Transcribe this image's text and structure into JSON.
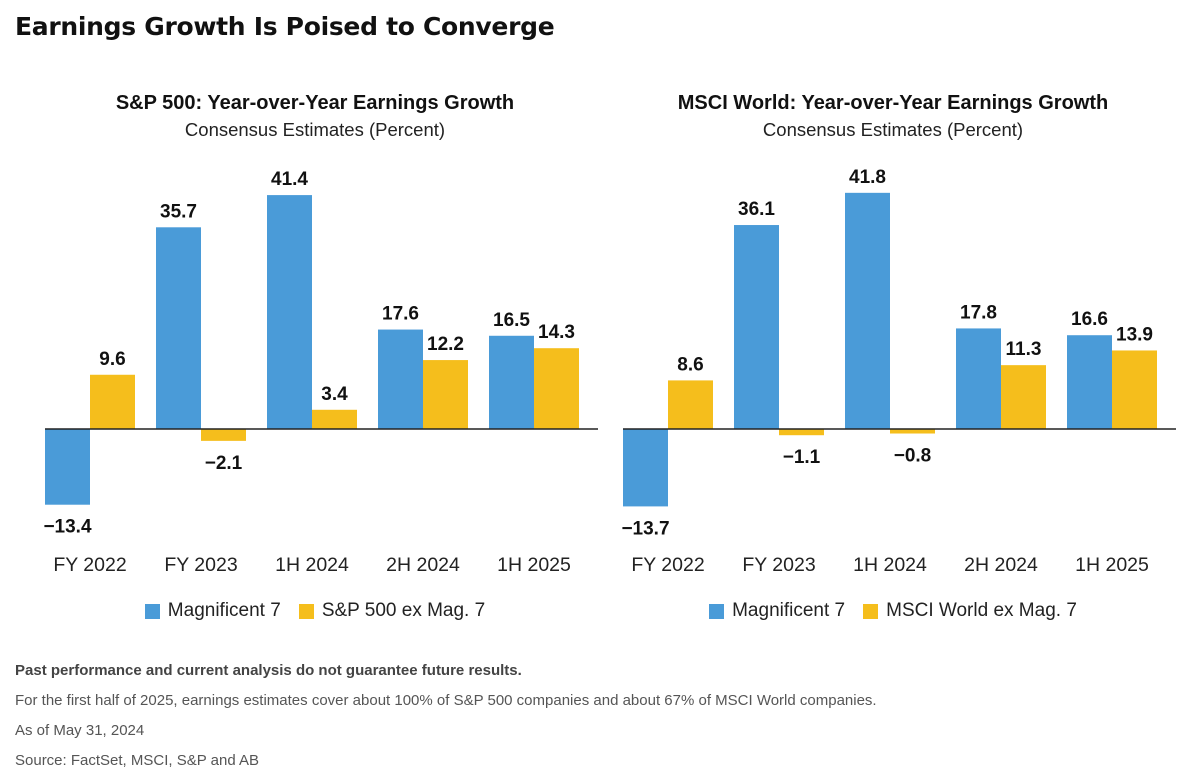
{
  "title": "Earnings Growth Is Poised to Converge",
  "colors": {
    "series1": "#4a9bd8",
    "series2": "#f5be1c",
    "axis": "#222222"
  },
  "chart_data": [
    {
      "type": "bar",
      "title": "S&P 500: Year-over-Year Earnings Growth",
      "subtitle": "Consensus Estimates (Percent)",
      "categories": [
        "FY 2022",
        "FY 2023",
        "1H 2024",
        "2H 2024",
        "1H 2025"
      ],
      "series": [
        {
          "name": "Magnificent 7",
          "values": [
            -13.4,
            35.7,
            41.4,
            17.6,
            16.5
          ]
        },
        {
          "name": "S&P 500 ex Mag. 7",
          "values": [
            9.6,
            -2.1,
            3.4,
            12.2,
            14.3
          ]
        }
      ],
      "value_labels": [
        [
          "−13.4",
          "35.7",
          "41.4",
          "17.6",
          "16.5"
        ],
        [
          "9.6",
          "−2.1",
          "3.4",
          "12.2",
          "14.3"
        ]
      ],
      "ylim": [
        -15,
        45
      ],
      "grid": false,
      "legend": "bottom"
    },
    {
      "type": "bar",
      "title": "MSCI World: Year-over-Year Earnings Growth",
      "subtitle": "Consensus Estimates (Percent)",
      "categories": [
        "FY 2022",
        "FY 2023",
        "1H 2024",
        "2H 2024",
        "1H 2025"
      ],
      "series": [
        {
          "name": "Magnificent 7",
          "values": [
            -13.7,
            36.1,
            41.8,
            17.8,
            16.6
          ]
        },
        {
          "name": "MSCI World ex Mag. 7",
          "values": [
            8.6,
            -1.1,
            -0.8,
            11.3,
            13.9
          ]
        }
      ],
      "value_labels": [
        [
          "−13.7",
          "36.1",
          "41.8",
          "17.8",
          "16.6"
        ],
        [
          "8.6",
          "−1.1",
          "−0.8",
          "11.3",
          "13.9"
        ]
      ],
      "ylim": [
        -15,
        45
      ],
      "grid": false,
      "legend": "bottom"
    }
  ],
  "footnotes": [
    "Past performance and current analysis do not guarantee future results.",
    "For the first half of 2025, earnings estimates cover about 100% of S&P 500 companies and about 67% of MSCI World companies.",
    "As of May 31, 2024",
    "Source: FactSet, MSCI, S&P and AB"
  ]
}
